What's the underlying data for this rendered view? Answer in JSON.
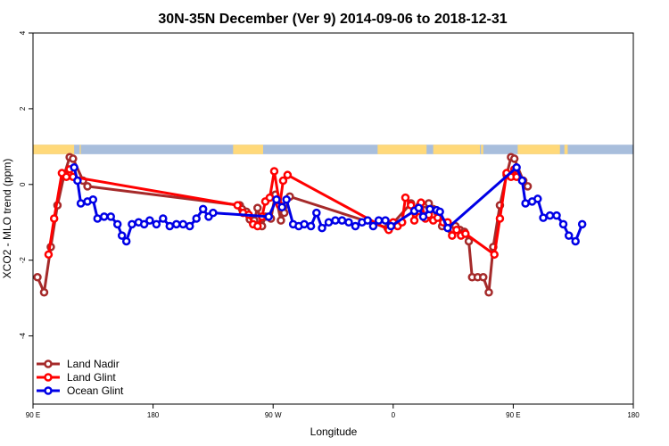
{
  "chart_data": {
    "type": "line",
    "title": "30N-35N December (Ver 9)   2014-09-06 to 2018-12-31",
    "xlabel": "Longitude",
    "ylabel": "XCO2 - MLO trend (ppm)",
    "xlim": [
      -90,
      180
    ],
    "ylim": [
      -5.8,
      4.0
    ],
    "x_ticks": [
      {
        "value": -90,
        "label": "90 E"
      },
      {
        "value": -36,
        "label": "180"
      },
      {
        "value": 18,
        "label": "90 W"
      },
      {
        "value": 72,
        "label": "0"
      },
      {
        "value": 126,
        "label": "90 E"
      },
      {
        "value": 180,
        "label": "180"
      }
    ],
    "y_ticks": [
      {
        "value": -4,
        "label": "-4"
      },
      {
        "value": -2,
        "label": "-2"
      },
      {
        "value": 0,
        "label": "0"
      },
      {
        "value": 2,
        "label": "2"
      },
      {
        "value": 4,
        "label": "4"
      }
    ],
    "legend": {
      "position": "bottom-left"
    },
    "surface_band": {
      "y_range": [
        0.8,
        1.05
      ],
      "land_color": "#FFD97A",
      "ocean_color": "#A8BEDC",
      "land_spans": [
        [
          -90,
          -71.5
        ],
        [
          -69,
          -68.5
        ],
        [
          0,
          13.5
        ],
        [
          65,
          87
        ],
        [
          90,
          111
        ],
        [
          111.5,
          112.5
        ],
        [
          128,
          147
        ],
        [
          149,
          150.5
        ]
      ]
    },
    "series": [
      {
        "name": "Land Nadir",
        "color": "#A52A2A",
        "points": [
          [
            -88,
            -2.45
          ],
          [
            -85,
            -2.85
          ],
          [
            -82,
            -1.65
          ],
          [
            -79,
            -0.55
          ],
          [
            -76,
            0.25
          ],
          [
            -73.5,
            0.72
          ],
          [
            -72,
            0.68
          ],
          [
            -67.5,
            0.1
          ],
          [
            -65.5,
            -0.05
          ],
          [
            3,
            -0.55
          ],
          [
            4,
            -0.65
          ],
          [
            6,
            -0.72
          ],
          [
            7.5,
            -0.92
          ],
          [
            9.5,
            -0.95
          ],
          [
            11,
            -0.62
          ],
          [
            13,
            -1.1
          ],
          [
            14.5,
            -0.85
          ],
          [
            17,
            -0.9
          ],
          [
            19,
            -0.27
          ],
          [
            21.5,
            -0.95
          ],
          [
            23,
            -0.75
          ],
          [
            25.5,
            -0.32
          ],
          [
            69.5,
            -1.15
          ],
          [
            71.5,
            -1.05
          ],
          [
            80,
            -0.5
          ],
          [
            82,
            -0.65
          ],
          [
            84,
            -0.55
          ],
          [
            86,
            -0.68
          ],
          [
            88,
            -0.5
          ],
          [
            90,
            -0.65
          ],
          [
            92,
            -0.75
          ],
          [
            94,
            -1.1
          ],
          [
            96,
            -1.05
          ],
          [
            98,
            -1.2
          ],
          [
            100,
            -1.1
          ],
          [
            102,
            -1.2
          ],
          [
            104,
            -1.25
          ],
          [
            106,
            -1.5
          ],
          [
            107.5,
            -2.45
          ],
          [
            110,
            -2.45
          ],
          [
            112.5,
            -2.45
          ],
          [
            115,
            -2.85
          ],
          [
            117,
            -1.65
          ],
          [
            120,
            -0.55
          ],
          [
            123,
            0.25
          ],
          [
            125,
            0.72
          ],
          [
            126.5,
            0.68
          ],
          [
            130.5,
            0.1
          ],
          [
            132.5,
            -0.05
          ]
        ]
      },
      {
        "name": "Land Glint",
        "color": "#FF0000",
        "points": [
          [
            -83,
            -1.85
          ],
          [
            -80.5,
            -0.9
          ],
          [
            -77,
            0.3
          ],
          [
            -75,
            0.2
          ],
          [
            -73.5,
            0.4
          ],
          [
            -72,
            0.2
          ],
          [
            2,
            -0.55
          ],
          [
            4.5,
            -0.75
          ],
          [
            7,
            -0.8
          ],
          [
            9,
            -1.05
          ],
          [
            11,
            -1.1
          ],
          [
            13,
            -0.85
          ],
          [
            14.5,
            -0.45
          ],
          [
            16.5,
            -0.35
          ],
          [
            18.5,
            0.35
          ],
          [
            21,
            -0.55
          ],
          [
            22.5,
            0.1
          ],
          [
            24.5,
            0.25
          ],
          [
            70,
            -1.2
          ],
          [
            72,
            -1.0
          ],
          [
            74,
            -1.1
          ],
          [
            76,
            -1.0
          ],
          [
            77.5,
            -0.35
          ],
          [
            80,
            -0.55
          ],
          [
            81.5,
            -0.95
          ],
          [
            83.5,
            -0.7
          ],
          [
            84.5,
            -0.48
          ],
          [
            86.5,
            -0.9
          ],
          [
            88,
            -0.8
          ],
          [
            90,
            -0.95
          ],
          [
            92,
            -0.88
          ],
          [
            94.5,
            -1.0
          ],
          [
            96.5,
            -1.0
          ],
          [
            98.5,
            -1.35
          ],
          [
            100.5,
            -1.2
          ],
          [
            102.5,
            -1.35
          ],
          [
            104.5,
            -1.3
          ],
          [
            117.5,
            -1.85
          ],
          [
            120,
            -0.9
          ],
          [
            123,
            0.3
          ],
          [
            125,
            0.2
          ],
          [
            126.5,
            0.4
          ],
          [
            127.5,
            0.2
          ]
        ]
      },
      {
        "name": "Ocean Glint",
        "color": "#0000E6",
        "points": [
          [
            -71.5,
            0.45
          ],
          [
            -70,
            0.1
          ],
          [
            -68.5,
            -0.5
          ],
          [
            -65.5,
            -0.45
          ],
          [
            -63,
            -0.4
          ],
          [
            -61,
            -0.9
          ],
          [
            -58,
            -0.85
          ],
          [
            -55,
            -0.85
          ],
          [
            -52,
            -1.05
          ],
          [
            -50,
            -1.35
          ],
          [
            -48,
            -1.5
          ],
          [
            -45.5,
            -1.05
          ],
          [
            -42.5,
            -1.0
          ],
          [
            -40,
            -1.05
          ],
          [
            -37.5,
            -0.95
          ],
          [
            -34.5,
            -1.05
          ],
          [
            -31.5,
            -0.9
          ],
          [
            -28.5,
            -1.1
          ],
          [
            -25.5,
            -1.05
          ],
          [
            -22.5,
            -1.05
          ],
          [
            -19.5,
            -1.1
          ],
          [
            -16.5,
            -0.9
          ],
          [
            -13.5,
            -0.65
          ],
          [
            -11,
            -0.85
          ],
          [
            -9,
            -0.75
          ],
          [
            16,
            -0.85
          ],
          [
            19.5,
            -0.4
          ],
          [
            22,
            -0.6
          ],
          [
            24,
            -0.4
          ],
          [
            27,
            -1.05
          ],
          [
            29.5,
            -1.1
          ],
          [
            32,
            -1.05
          ],
          [
            35,
            -1.1
          ],
          [
            37.5,
            -0.75
          ],
          [
            40,
            -1.15
          ],
          [
            43,
            -1.0
          ],
          [
            46,
            -0.95
          ],
          [
            49,
            -0.95
          ],
          [
            52,
            -1.0
          ],
          [
            55,
            -1.1
          ],
          [
            58,
            -1.0
          ],
          [
            60.5,
            -0.95
          ],
          [
            63,
            -1.1
          ],
          [
            65.5,
            -0.95
          ],
          [
            68.5,
            -0.95
          ],
          [
            71,
            -1.1
          ],
          [
            81.5,
            -0.7
          ],
          [
            83.5,
            -0.62
          ],
          [
            85.5,
            -0.85
          ],
          [
            88.5,
            -0.65
          ],
          [
            91.5,
            -0.68
          ],
          [
            93,
            -0.72
          ],
          [
            96.5,
            -1.15
          ],
          [
            127.5,
            0.45
          ],
          [
            130,
            0.1
          ],
          [
            131.5,
            -0.5
          ],
          [
            134.5,
            -0.45
          ],
          [
            137,
            -0.38
          ],
          [
            139.5,
            -0.88
          ],
          [
            142.5,
            -0.82
          ],
          [
            145.5,
            -0.82
          ],
          [
            148.5,
            -1.05
          ],
          [
            151,
            -1.35
          ],
          [
            154,
            -1.5
          ],
          [
            157,
            -1.05
          ]
        ]
      }
    ]
  }
}
